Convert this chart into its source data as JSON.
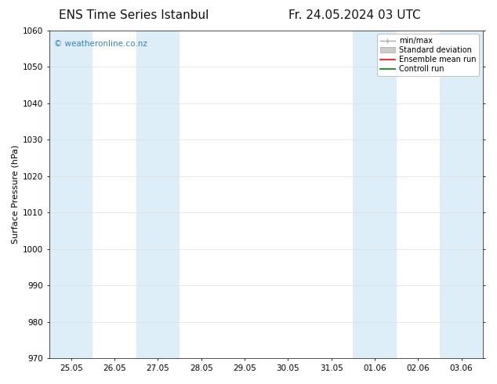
{
  "title_left": "ENS Time Series Istanbul",
  "title_right": "Fr. 24.05.2024 03 UTC",
  "ylabel": "Surface Pressure (hPa)",
  "ylim": [
    970,
    1060
  ],
  "yticks": [
    970,
    980,
    990,
    1000,
    1010,
    1020,
    1030,
    1040,
    1050,
    1060
  ],
  "x_labels": [
    "25.05",
    "26.05",
    "27.05",
    "28.05",
    "29.05",
    "30.05",
    "31.05",
    "01.06",
    "02.06",
    "03.06"
  ],
  "x_positions": [
    0,
    1,
    2,
    3,
    4,
    5,
    6,
    7,
    8,
    9
  ],
  "xlim": [
    -0.5,
    9.5
  ],
  "shaded_bands": [
    {
      "x_start": -0.5,
      "x_end": 0.5
    },
    {
      "x_start": 1.5,
      "x_end": 2.5
    },
    {
      "x_start": 6.5,
      "x_end": 7.5
    },
    {
      "x_start": 8.5,
      "x_end": 9.5
    }
  ],
  "band_color": "#ddeef8",
  "watermark_text": "© weatheronline.co.nz",
  "watermark_color": "#3a7fc1",
  "legend_labels": [
    "min/max",
    "Standard deviation",
    "Ensemble mean run",
    "Controll run"
  ],
  "legend_colors": [
    "#999999",
    "#cccccc",
    "#ff0000",
    "#008000"
  ],
  "bg_color": "#ffffff",
  "plot_bg_color": "#ffffff",
  "grid_color": "#dddddd",
  "title_fontsize": 11,
  "axis_fontsize": 8,
  "tick_fontsize": 7.5,
  "legend_fontsize": 7
}
